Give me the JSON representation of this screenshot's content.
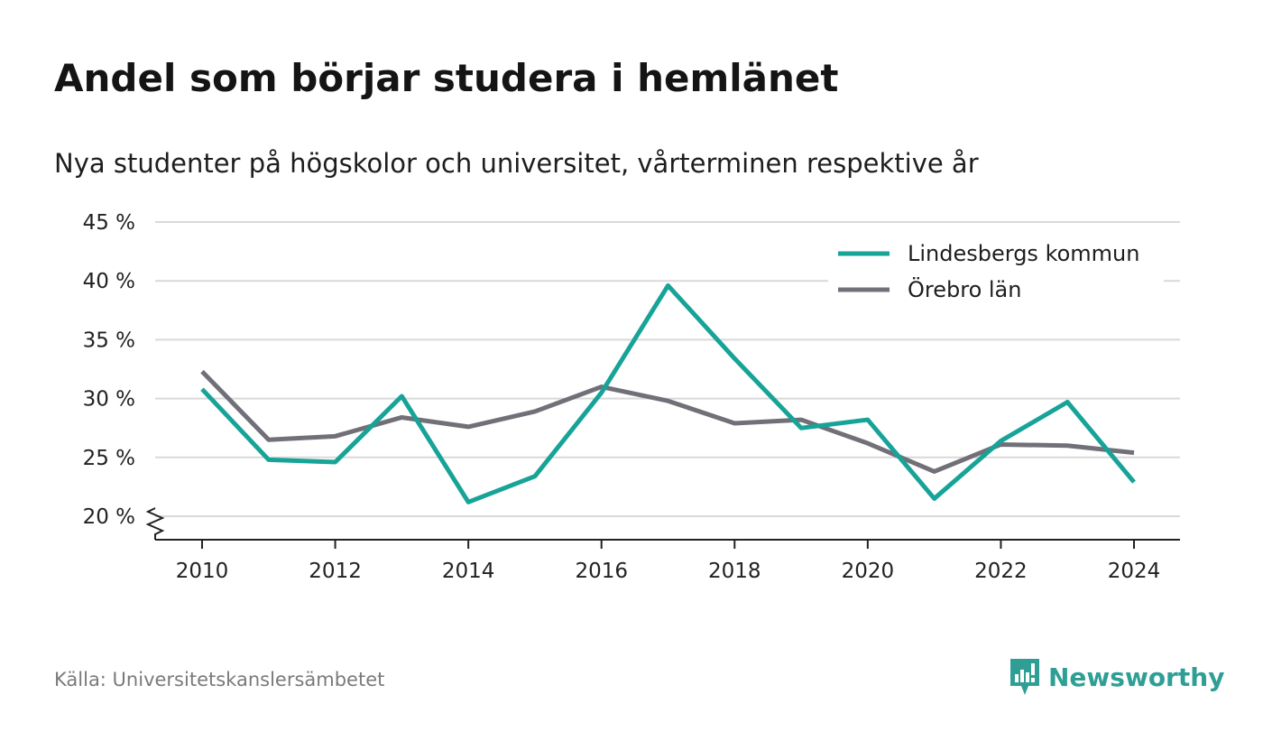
{
  "header": {
    "title": "Andel som börjar studera i hemlänet",
    "subtitle": "Nya studenter på högskolor och universitet, vårterminen respektive år"
  },
  "footer": {
    "source": "Källa: Universitetskanslersämbetet",
    "brand": "Newsworthy"
  },
  "colors": {
    "series_1": "#17a398",
    "series_2": "#717078",
    "grid": "#d9d9d9",
    "axis": "#222222",
    "brand": "#2f9f95"
  },
  "chart_data": {
    "type": "line",
    "x": [
      2010,
      2011,
      2012,
      2013,
      2014,
      2015,
      2016,
      2017,
      2018,
      2019,
      2020,
      2021,
      2022,
      2023,
      2024
    ],
    "x_tick_labels": [
      "2010",
      "2012",
      "2014",
      "2016",
      "2018",
      "2020",
      "2022",
      "2024"
    ],
    "y_tick_labels": [
      "20 %",
      "25 %",
      "30 %",
      "35 %",
      "40 %",
      "45 %"
    ],
    "y_ticks": [
      20,
      25,
      30,
      35,
      40,
      45
    ],
    "ylim": [
      18,
      45
    ],
    "y_axis_broken": true,
    "grid": true,
    "legend_position": "top-right",
    "series": [
      {
        "name": "Lindesbergs kommun",
        "color": "#17a398",
        "values": [
          30.8,
          24.8,
          24.6,
          30.2,
          21.2,
          23.4,
          30.5,
          39.6,
          33.4,
          27.5,
          28.2,
          21.5,
          26.4,
          29.7,
          22.9
        ]
      },
      {
        "name": "Örebro län",
        "color": "#717078",
        "values": [
          32.3,
          26.5,
          26.8,
          28.4,
          27.6,
          28.9,
          31.0,
          29.8,
          27.9,
          28.2,
          26.2,
          23.8,
          26.1,
          26.0,
          25.4
        ]
      }
    ]
  }
}
